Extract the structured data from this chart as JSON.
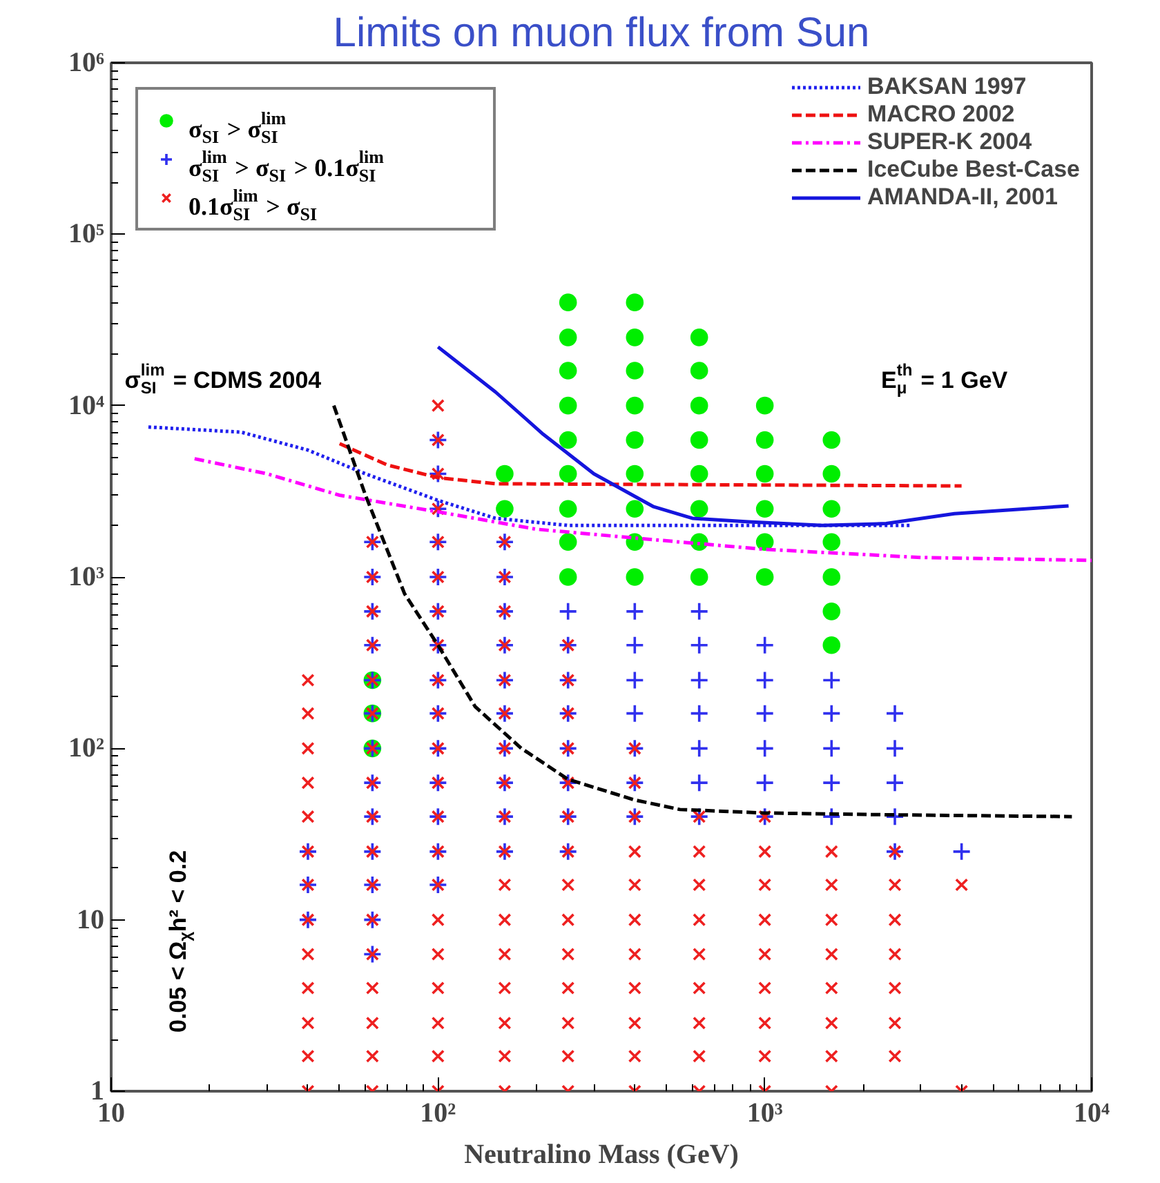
{
  "chart_data": {
    "type": "scatter",
    "title": "Limits on muon flux from Sun",
    "xlabel": "Neutralino Mass (GeV)",
    "log": "xy",
    "xlim": [
      10,
      10000
    ],
    "ylim": [
      1,
      1000000
    ],
    "xticks": [
      {
        "value": 10,
        "label": "10"
      },
      {
        "value": 100,
        "label": "10²"
      },
      {
        "value": 1000,
        "label": "10³"
      },
      {
        "value": 10000,
        "label": "10⁴"
      }
    ],
    "yticks": [
      {
        "value": 1,
        "label": "1"
      },
      {
        "value": 10,
        "label": "10"
      },
      {
        "value": 100,
        "label": "10²"
      },
      {
        "value": 1000,
        "label": "10³"
      },
      {
        "value": 10000,
        "label": "10⁴"
      },
      {
        "value": 100000,
        "label": "10⁵"
      },
      {
        "value": 1000000,
        "label": "10⁶"
      }
    ],
    "grid": false,
    "legend": "top",
    "annotations": [
      "σ$_{SI}$$^{lim}$ = CDMS 2004",
      "E$_{μ}$$^{th}$ = 1 GeV",
      "0.05 < Ω$_{χ}$h² < 0.2"
    ],
    "series": [
      {
        "name": "σ$_{SI}$ > σ$_{SI}$$^{lim}$",
        "marker": "circle",
        "color": "#00ee00",
        "x": [
          63,
          63,
          63,
          160,
          160,
          250,
          250,
          250,
          250,
          250,
          250,
          250,
          250,
          250,
          400,
          400,
          400,
          400,
          400,
          400,
          400,
          400,
          400,
          630,
          630,
          630,
          630,
          630,
          630,
          630,
          630,
          1000,
          1000,
          1000,
          1000,
          1000,
          1000,
          1600,
          1600,
          1600,
          1600,
          1600,
          1600,
          1600
        ],
        "values": [
          100,
          160,
          250,
          2500,
          4000,
          1000,
          1600,
          2500,
          4000,
          6300,
          10000,
          16000,
          25000,
          40000,
          1000,
          1600,
          2500,
          4000,
          6300,
          10000,
          16000,
          25000,
          40000,
          1000,
          1600,
          2500,
          4000,
          6300,
          10000,
          16000,
          25000,
          1000,
          1600,
          2500,
          4000,
          6300,
          10000,
          400,
          630,
          1000,
          1600,
          2500,
          4000,
          6300
        ]
      },
      {
        "name": "σ$_{SI}$$^{lim}$ > σ$_{SI}$ > 0.1σ$_{SI}$$^{lim}$",
        "marker": "cross",
        "color": "#3030ee",
        "x": [
          40,
          40,
          40,
          63,
          63,
          63,
          63,
          63,
          63,
          63,
          63,
          63,
          63,
          63,
          63,
          63,
          100,
          100,
          100,
          100,
          100,
          100,
          100,
          100,
          100,
          100,
          100,
          100,
          100,
          100,
          160,
          160,
          160,
          160,
          160,
          160,
          160,
          160,
          160,
          160,
          250,
          250,
          250,
          250,
          250,
          250,
          250,
          250,
          400,
          400,
          400,
          400,
          400,
          400,
          400,
          630,
          630,
          630,
          630,
          630,
          630,
          630,
          1000,
          1000,
          1000,
          1000,
          1000,
          1000,
          1600,
          1600,
          1600,
          1600,
          1600,
          2500,
          2500,
          2500,
          2500,
          2500,
          4000
        ],
        "values": [
          10,
          16,
          25,
          6.3,
          10,
          16,
          25,
          40,
          63,
          100,
          160,
          250,
          400,
          630,
          1000,
          1600,
          16,
          25,
          40,
          63,
          100,
          160,
          250,
          400,
          630,
          1000,
          1600,
          2500,
          4000,
          6300,
          25,
          40,
          63,
          100,
          160,
          250,
          400,
          630,
          1000,
          1600,
          25,
          40,
          63,
          100,
          160,
          250,
          400,
          630,
          40,
          63,
          100,
          160,
          250,
          400,
          630,
          40,
          63,
          100,
          160,
          250,
          400,
          630,
          40,
          63,
          100,
          160,
          250,
          400,
          40,
          63,
          100,
          160,
          250,
          25,
          40,
          63,
          100,
          160,
          25
        ]
      },
      {
        "name": "0.1σ$_{SI}$$^{lim}$ > σ$_{SI}$",
        "marker": "x",
        "color": "#ee2020",
        "x": [
          40,
          40,
          40,
          40,
          40,
          40,
          40,
          40,
          40,
          40,
          40,
          40,
          40,
          63,
          63,
          63,
          63,
          63,
          63,
          63,
          63,
          63,
          63,
          63,
          63,
          63,
          63,
          63,
          63,
          63,
          100,
          100,
          100,
          100,
          100,
          100,
          100,
          100,
          100,
          100,
          100,
          100,
          100,
          100,
          100,
          100,
          100,
          100,
          100,
          100,
          100,
          160,
          160,
          160,
          160,
          160,
          160,
          160,
          160,
          160,
          160,
          160,
          160,
          160,
          160,
          160,
          160,
          160,
          250,
          250,
          250,
          250,
          250,
          250,
          250,
          250,
          250,
          250,
          250,
          250,
          250,
          250,
          400,
          400,
          400,
          400,
          400,
          400,
          400,
          400,
          400,
          400,
          400,
          630,
          630,
          630,
          630,
          630,
          630,
          630,
          630,
          630,
          1000,
          1000,
          1000,
          1000,
          1000,
          1000,
          1000,
          1000,
          1000,
          1600,
          1600,
          1600,
          1600,
          1600,
          1600,
          1600,
          1600,
          2500,
          2500,
          2500,
          2500,
          2500,
          2500,
          2500,
          4000,
          4000
        ],
        "values": [
          1,
          1.6,
          2.5,
          4,
          6.3,
          10,
          16,
          25,
          40,
          63,
          100,
          160,
          250,
          1,
          1.6,
          2.5,
          4,
          6.3,
          10,
          16,
          25,
          40,
          63,
          100,
          160,
          250,
          400,
          630,
          1000,
          1600,
          1,
          1.6,
          2.5,
          4,
          6.3,
          10,
          16,
          25,
          40,
          63,
          100,
          160,
          250,
          400,
          630,
          1000,
          1600,
          2500,
          4000,
          6300,
          10000,
          1,
          1.6,
          2.5,
          4,
          6.3,
          10,
          16,
          25,
          40,
          63,
          100,
          160,
          250,
          400,
          630,
          1000,
          1600,
          1,
          1.6,
          2.5,
          4,
          6.3,
          10,
          16,
          25,
          40,
          63,
          100,
          160,
          250,
          400,
          1,
          1.6,
          2.5,
          4,
          6.3,
          10,
          16,
          25,
          40,
          63,
          100,
          1,
          1.6,
          2.5,
          4,
          6.3,
          10,
          16,
          25,
          40,
          1,
          1.6,
          2.5,
          4,
          6.3,
          10,
          16,
          25,
          40,
          1,
          1.6,
          2.5,
          4,
          6.3,
          10,
          16,
          25,
          1.6,
          2.5,
          4,
          6.3,
          10,
          16,
          25,
          1,
          16
        ]
      },
      {
        "name": "BAKSAN 1997",
        "type": "line",
        "line_style": "dotted",
        "color": "#2020ee",
        "x": [
          13,
          25,
          40,
          60,
          100,
          150,
          250,
          1000,
          2800
        ],
        "values": [
          7500,
          7000,
          5500,
          4000,
          2800,
          2200,
          2000,
          2000,
          2000
        ]
      },
      {
        "name": "MACRO 2002",
        "type": "line",
        "line_style": "dashed",
        "color": "#ee1010",
        "x": [
          50,
          70,
          100,
          150,
          4000
        ],
        "values": [
          6000,
          4500,
          3800,
          3500,
          3400
        ]
      },
      {
        "name": "SUPER-K 2004",
        "type": "line",
        "line_style": "dashdot",
        "color": "#ff00ff",
        "x": [
          18,
          30,
          50,
          100,
          200,
          550,
          1000,
          3000,
          10000
        ],
        "values": [
          4900,
          4000,
          3000,
          2400,
          1900,
          1600,
          1450,
          1300,
          1250
        ]
      },
      {
        "name": "IceCube Best-Case",
        "type": "line",
        "line_style": "dashed",
        "color": "#000000",
        "x": [
          48,
          60,
          79,
          100,
          130,
          180,
          250,
          400,
          550,
          1000,
          2350,
          8700
        ],
        "values": [
          10000,
          3000,
          800,
          400,
          175,
          100,
          66,
          50,
          44,
          42,
          41,
          40
        ]
      },
      {
        "name": "AMANDA-II, 2001",
        "type": "line",
        "line_style": "solid",
        "color": "#1515dd",
        "x": [
          100,
          150,
          210,
          300,
          457,
          600,
          890,
          1500,
          2350,
          3800,
          8500
        ],
        "values": [
          22000,
          12000,
          6800,
          4000,
          2570,
          2200,
          2100,
          2000,
          2050,
          2340,
          2600
        ]
      }
    ]
  }
}
